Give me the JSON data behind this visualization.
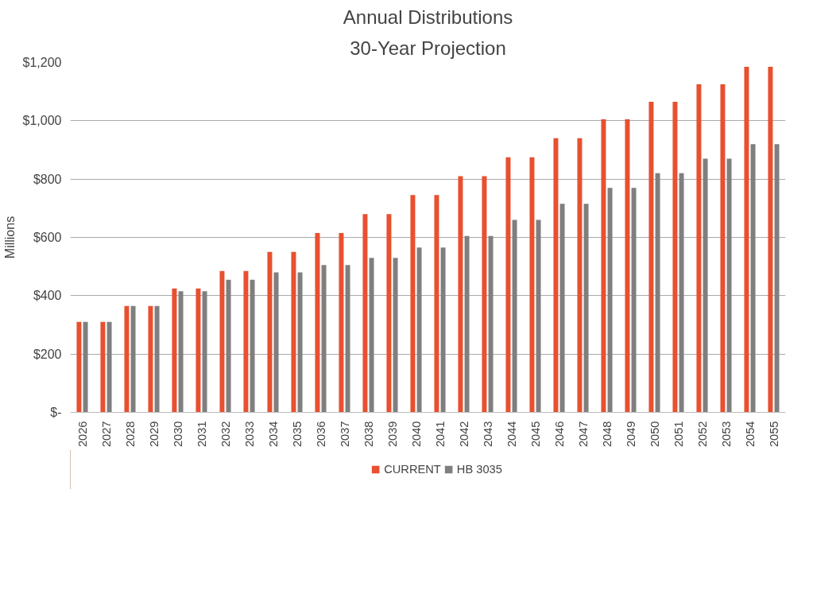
{
  "chart_data": {
    "type": "bar",
    "title": "Annual Distributions",
    "subtitle": "30-Year Projection",
    "ylabel": "Millions",
    "categories": [
      "2026",
      "2027",
      "2028",
      "2029",
      "2030",
      "2031",
      "2032",
      "2033",
      "2034",
      "2035",
      "2036",
      "2037",
      "2038",
      "2039",
      "2040",
      "2041",
      "2042",
      "2043",
      "2044",
      "2045",
      "2046",
      "2047",
      "2048",
      "2049",
      "2050",
      "2051",
      "2052",
      "2053",
      "2054",
      "2055"
    ],
    "series": [
      {
        "name": "CURRENT",
        "color": "#e8502f",
        "values": [
          310,
          310,
          365,
          365,
          425,
          425,
          485,
          485,
          550,
          550,
          615,
          615,
          680,
          680,
          745,
          745,
          810,
          810,
          875,
          875,
          940,
          940,
          1005,
          1005,
          1065,
          1065,
          1125,
          1125,
          1185,
          1185
        ]
      },
      {
        "name": "HB 3035",
        "color": "#7f7f7f",
        "values": [
          310,
          310,
          365,
          365,
          415,
          415,
          455,
          455,
          480,
          480,
          505,
          505,
          530,
          530,
          565,
          565,
          605,
          605,
          660,
          660,
          715,
          715,
          770,
          770,
          820,
          820,
          870,
          870,
          920,
          920
        ]
      }
    ],
    "ylim": [
      0,
      1200
    ],
    "yticks": [
      {
        "value": 0,
        "label": "$-"
      },
      {
        "value": 200,
        "label": "$200"
      },
      {
        "value": 400,
        "label": "$400"
      },
      {
        "value": 600,
        "label": "$600"
      },
      {
        "value": 800,
        "label": "$800"
      },
      {
        "value": 1000,
        "label": "$1,000"
      },
      {
        "value": 1200,
        "label": "$1,200"
      }
    ],
    "grid": "y",
    "legend": "bottom"
  }
}
